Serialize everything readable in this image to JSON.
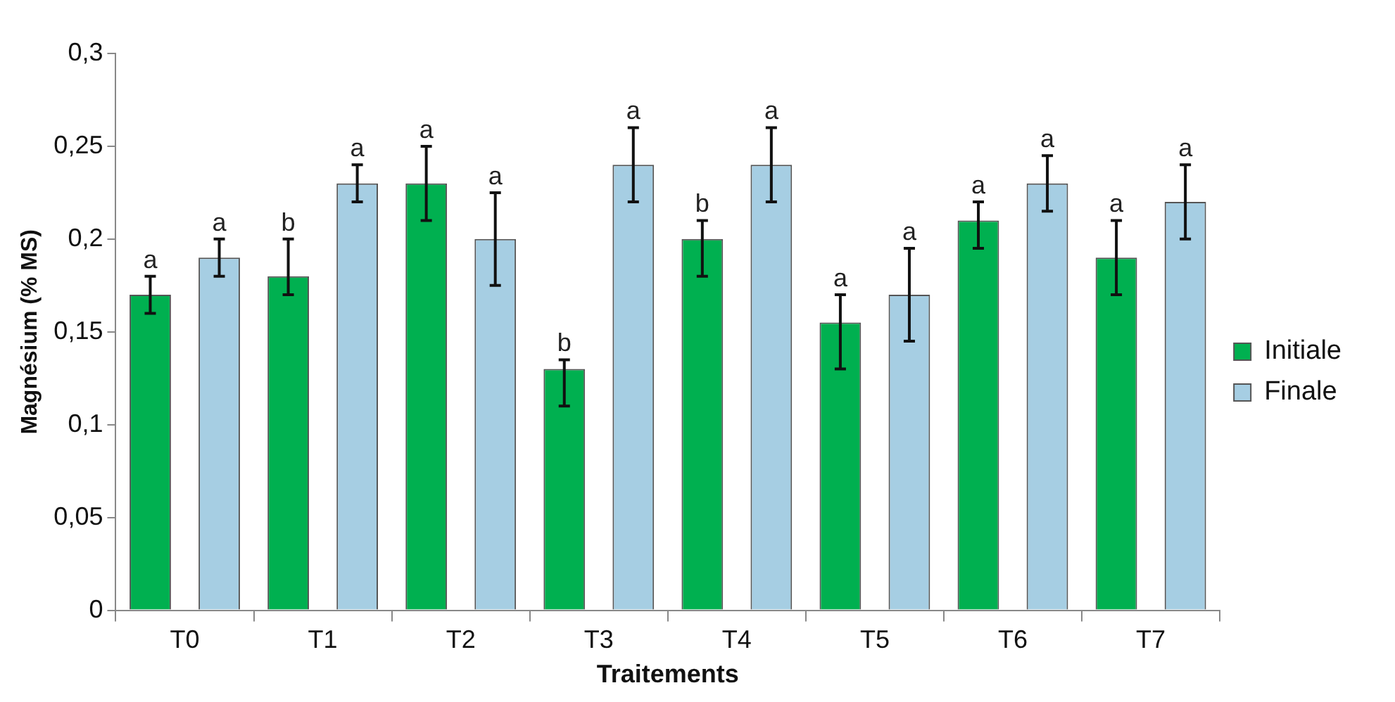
{
  "chart_data": {
    "type": "bar",
    "xlabel": "Traitements",
    "ylabel": "Magnésium (% MS)",
    "categories": [
      "T0",
      "T1",
      "T2",
      "T3",
      "T4",
      "T5",
      "T6",
      "T7"
    ],
    "series": [
      {
        "name": "Initiale",
        "color": "#00b050",
        "values": [
          0.17,
          0.18,
          0.23,
          0.13,
          0.2,
          0.155,
          0.21,
          0.19
        ],
        "errors": [
          0.01,
          [
            0.17,
            0.2
          ],
          0.02,
          [
            0.11,
            0.135
          ],
          [
            0.18,
            0.21
          ],
          [
            0.13,
            0.17
          ],
          [
            0.195,
            0.22
          ],
          0.02
        ],
        "value_labels": [
          "a",
          "b",
          "a",
          "b",
          "b",
          "a",
          "a",
          "a"
        ]
      },
      {
        "name": "Finale",
        "color": "#a6cee3",
        "values": [
          0.19,
          0.23,
          0.2,
          0.24,
          0.24,
          0.17,
          0.23,
          0.22
        ],
        "errors": [
          0.01,
          0.01,
          0.025,
          0.02,
          0.02,
          0.025,
          0.015,
          0.02
        ],
        "value_labels": [
          "a",
          "a",
          "a",
          "a",
          "a",
          "a",
          "a",
          "a"
        ]
      }
    ],
    "ylim": [
      0,
      0.3
    ],
    "yticks": [
      0,
      {
        "value": 0.05,
        "label": "0,05"
      },
      {
        "value": 0.1,
        "label": "0,1"
      },
      {
        "value": 0.15,
        "label": "0,15"
      },
      {
        "value": 0.2,
        "label": "0,2"
      },
      {
        "value": 0.25,
        "label": "0,25"
      },
      {
        "value": 0.3,
        "label": "0,3"
      }
    ],
    "legend": "right"
  }
}
